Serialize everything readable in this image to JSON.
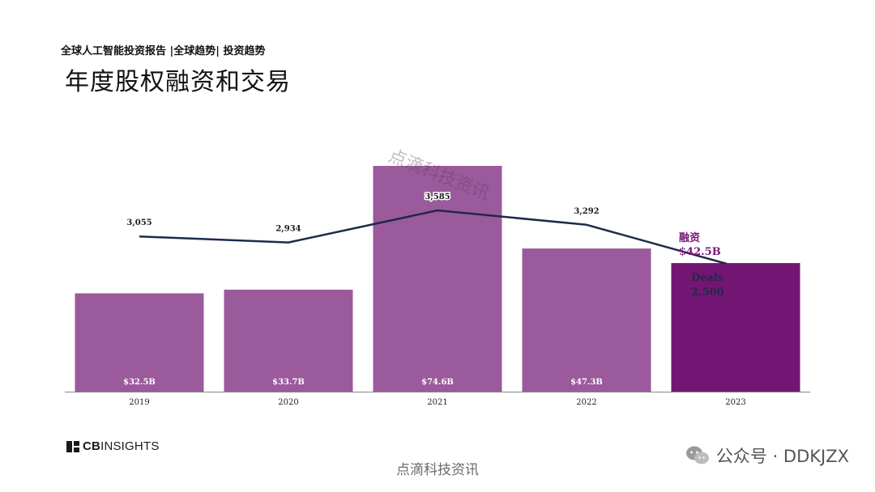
{
  "header": {
    "breadcrumb": "全球人工智能投资报告 |全球趋势| 投资趋势",
    "title": "年度股权融资和交易"
  },
  "chart_data": {
    "type": "bar",
    "categories": [
      "2019",
      "2020",
      "2021",
      "2022",
      "2023"
    ],
    "series": [
      {
        "name": "融资",
        "kind": "bar",
        "values": [
          32.5,
          33.7,
          74.6,
          47.3,
          42.5
        ],
        "labels": [
          "$32.5B",
          "$33.7B",
          "$74.6B",
          "$47.3B",
          "$42.5B"
        ]
      },
      {
        "name": "Deals",
        "kind": "line",
        "values": [
          3055,
          2934,
          3585,
          3292,
          2500
        ],
        "labels": [
          "3,055",
          "2,934",
          "3,585",
          "3,292",
          "2,500"
        ]
      }
    ],
    "callout": {
      "funding_label": "融资",
      "funding_value": "$42.5B",
      "deals_label": "Deals",
      "deals_value": "2,500"
    },
    "colors": {
      "bar": "#9b5a9c",
      "bar_highlight": "#731673",
      "line": "#1e2a4a",
      "highlight_text": "#7a1a78"
    }
  },
  "overlay_watermark": "点滴科技资讯",
  "footer": {
    "logo_icon": "cb-insights-logo",
    "logo_prefix": "CB",
    "logo_suffix": "INSIGHTS",
    "watermark": "点滴科技资讯",
    "wechat_icon": "wechat-icon",
    "wechat_account": "公众号 · DDKJZX"
  }
}
